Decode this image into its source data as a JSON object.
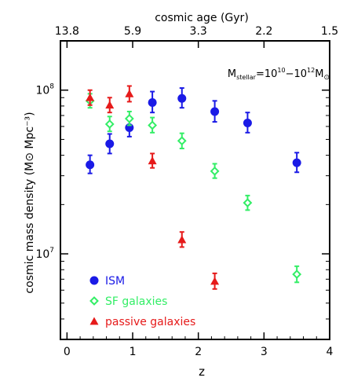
{
  "chart_data": {
    "type": "scatter",
    "xlabel": "z",
    "ylabel": "cosmic mass density (M⊙ Mpc⁻³)",
    "top_axis_label": "cosmic age (Gyr)",
    "top_ticks": [
      {
        "z": 0.0,
        "label": "13.8"
      },
      {
        "z": 1.0,
        "label": "5.9"
      },
      {
        "z": 2.0,
        "label": "3.3"
      },
      {
        "z": 3.0,
        "label": "2.2"
      },
      {
        "z": 4.0,
        "label": "1.5"
      }
    ],
    "xlim": [
      -0.1,
      4.0
    ],
    "ylim": [
      3000000.0,
      200000000.0
    ],
    "yscale": "log",
    "x_ticks": [
      0,
      1,
      2,
      3,
      4
    ],
    "x_tick_labels": [
      "0",
      "1",
      "2",
      "3",
      "4"
    ],
    "y_major_ticks": [
      {
        "value": 10000000.0,
        "base": "10",
        "exp": "7"
      },
      {
        "value": 100000000.0,
        "base": "10",
        "exp": "8"
      }
    ],
    "annotation": {
      "base": "M",
      "sub": "stellar",
      "mid": "=10",
      "exp1": "10",
      "dash": "−10",
      "exp2": "12",
      "tail": "M",
      "odot": "⊙"
    },
    "legend_position": "bottom-left",
    "series": [
      {
        "name": "ISM",
        "marker": "circle",
        "color": "#1a1ae6",
        "x": [
          0.35,
          0.65,
          0.95,
          1.3,
          1.75,
          2.25,
          2.75,
          3.5
        ],
        "y": [
          35000000.0,
          47000000.0,
          59000000.0,
          84000000.0,
          89000000.0,
          74000000.0,
          63000000.0,
          36000000.0
        ],
        "yerr_lo": [
          4000000.0,
          6000000.0,
          7000000.0,
          11000000.0,
          11000000.0,
          10000000.0,
          8000000.0,
          4500000.0
        ],
        "yerr_hi": [
          5000000.0,
          7000000.0,
          9000000.0,
          14000000.0,
          14000000.0,
          12000000.0,
          10000000.0,
          5500000.0
        ]
      },
      {
        "name": "SF galaxies",
        "marker": "diamond",
        "color": "#33ee66",
        "x": [
          0.35,
          0.65,
          0.95,
          1.3,
          1.75,
          2.25,
          2.75,
          3.5
        ],
        "y": [
          86000000.0,
          62000000.0,
          67000000.0,
          61000000.0,
          49000000.0,
          32000000.0,
          20500000.0,
          7500000.0
        ],
        "yerr_lo": [
          8000000.0,
          6000000.0,
          6000000.0,
          6000000.0,
          5000000.0,
          3000000.0,
          2000000.0,
          800000.0
        ],
        "yerr_hi": [
          9000000.0,
          7000000.0,
          7000000.0,
          7000000.0,
          5500000.0,
          3500000.0,
          2200000.0,
          900000.0
        ]
      },
      {
        "name": "passive galaxies",
        "marker": "triangle",
        "color": "#e61a1a",
        "x": [
          0.35,
          0.65,
          0.95,
          1.3,
          1.75,
          2.25
        ],
        "y": [
          90000000.0,
          81000000.0,
          95000000.0,
          37000000.0,
          12200000.0,
          6800000.0
        ],
        "yerr_lo": [
          9000000.0,
          8000000.0,
          10000000.0,
          3500000.0,
          1200000.0,
          700000.0
        ],
        "yerr_hi": [
          10000000.0,
          9000000.0,
          11000000.0,
          4000000.0,
          1400000.0,
          800000.0
        ]
      }
    ]
  }
}
